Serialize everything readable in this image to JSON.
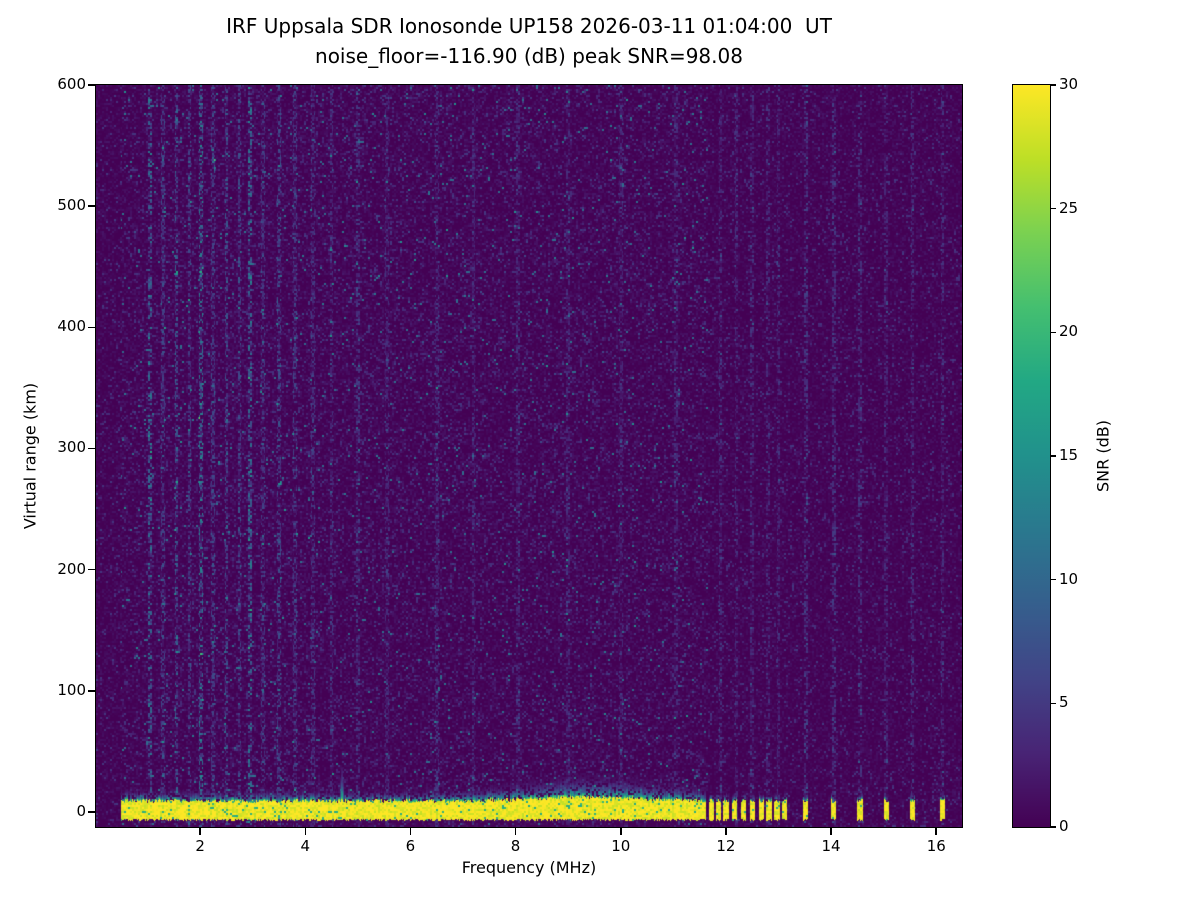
{
  "chart_data": {
    "type": "heatmap",
    "title": "IRF Uppsala SDR Ionosonde UP158 2026-03-11 01:04:00  UT",
    "subtitle": "noise_floor=-116.90 (dB) peak SNR=98.08",
    "station": "IRF Uppsala SDR Ionosonde UP158",
    "timestamp_ut": "2026-03-11 01:04:00",
    "noise_floor_db": -116.9,
    "peak_snr_db": 98.08,
    "xlabel": "Frequency (MHz)",
    "ylabel": "Virtual range (km)",
    "xlim": [
      0.02,
      16.49
    ],
    "ylim": [
      -12.4,
      600
    ],
    "x_ticks": [
      2,
      4,
      6,
      8,
      10,
      12,
      14,
      16
    ],
    "y_ticks": [
      0,
      100,
      200,
      300,
      400,
      500,
      600
    ],
    "colorbar": {
      "label": "SNR (dB)",
      "min": 0,
      "max": 30,
      "ticks": [
        0,
        5,
        10,
        15,
        20,
        25,
        30
      ],
      "colormap": "viridis"
    },
    "viridis_stops": [
      [
        0.0,
        "#440154"
      ],
      [
        0.1,
        "#482475"
      ],
      [
        0.2,
        "#414487"
      ],
      [
        0.3,
        "#355f8d"
      ],
      [
        0.4,
        "#2a788e"
      ],
      [
        0.5,
        "#21918c"
      ],
      [
        0.6,
        "#22a884"
      ],
      [
        0.7,
        "#44bf70"
      ],
      [
        0.8,
        "#7ad151"
      ],
      [
        0.9,
        "#bddf26"
      ],
      [
        1.0,
        "#fde725"
      ]
    ],
    "ground_return": {
      "freq_start_mhz": 0.5,
      "freq_end_mhz": 11.62,
      "range_bottom_km": -5.5,
      "range_top_km": 9,
      "snr_db": 30,
      "spike": {
        "freq_mhz": 4.7,
        "top_km": 36
      }
    },
    "pulse_freqs_mhz": [
      11.72,
      11.86,
      12.0,
      12.17,
      12.33,
      12.5,
      12.68,
      12.82,
      12.97,
      13.12,
      13.52,
      14.05,
      14.55,
      15.05,
      15.55,
      16.12
    ],
    "noise_region": {
      "freq_start_mhz": 0.5,
      "freq_end_mhz": 11.65
    },
    "rfi_streaks": [
      {
        "f": 1.05,
        "s": 0.85
      },
      {
        "f": 1.3,
        "s": 0.5
      },
      {
        "f": 1.55,
        "s": 0.7
      },
      {
        "f": 1.8,
        "s": 0.5
      },
      {
        "f": 2.02,
        "s": 0.95
      },
      {
        "f": 2.25,
        "s": 0.5
      },
      {
        "f": 2.5,
        "s": 0.6
      },
      {
        "f": 2.75,
        "s": 0.55
      },
      {
        "f": 2.95,
        "s": 0.9
      },
      {
        "f": 3.2,
        "s": 0.45
      },
      {
        "f": 3.5,
        "s": 0.55
      },
      {
        "f": 3.8,
        "s": 0.45
      },
      {
        "f": 4.15,
        "s": 0.4
      },
      {
        "f": 4.5,
        "s": 0.35
      },
      {
        "f": 5.0,
        "s": 0.4
      },
      {
        "f": 5.55,
        "s": 0.3
      },
      {
        "f": 6.5,
        "s": 0.35
      },
      {
        "f": 7.2,
        "s": 0.3
      },
      {
        "f": 8.05,
        "s": 0.3
      },
      {
        "f": 9.0,
        "s": 0.28
      },
      {
        "f": 10.0,
        "s": 0.28
      },
      {
        "f": 11.05,
        "s": 0.3
      },
      {
        "f": 11.9,
        "s": 0.35
      },
      {
        "f": 12.2,
        "s": 0.3
      },
      {
        "f": 12.5,
        "s": 0.32
      },
      {
        "f": 12.8,
        "s": 0.3
      },
      {
        "f": 13.0,
        "s": 0.3
      },
      {
        "f": 13.52,
        "s": 0.4
      },
      {
        "f": 14.05,
        "s": 0.4
      },
      {
        "f": 14.55,
        "s": 0.35
      },
      {
        "f": 15.05,
        "s": 0.3
      },
      {
        "f": 15.55,
        "s": 0.35
      },
      {
        "f": 16.12,
        "s": 0.35
      }
    ]
  }
}
